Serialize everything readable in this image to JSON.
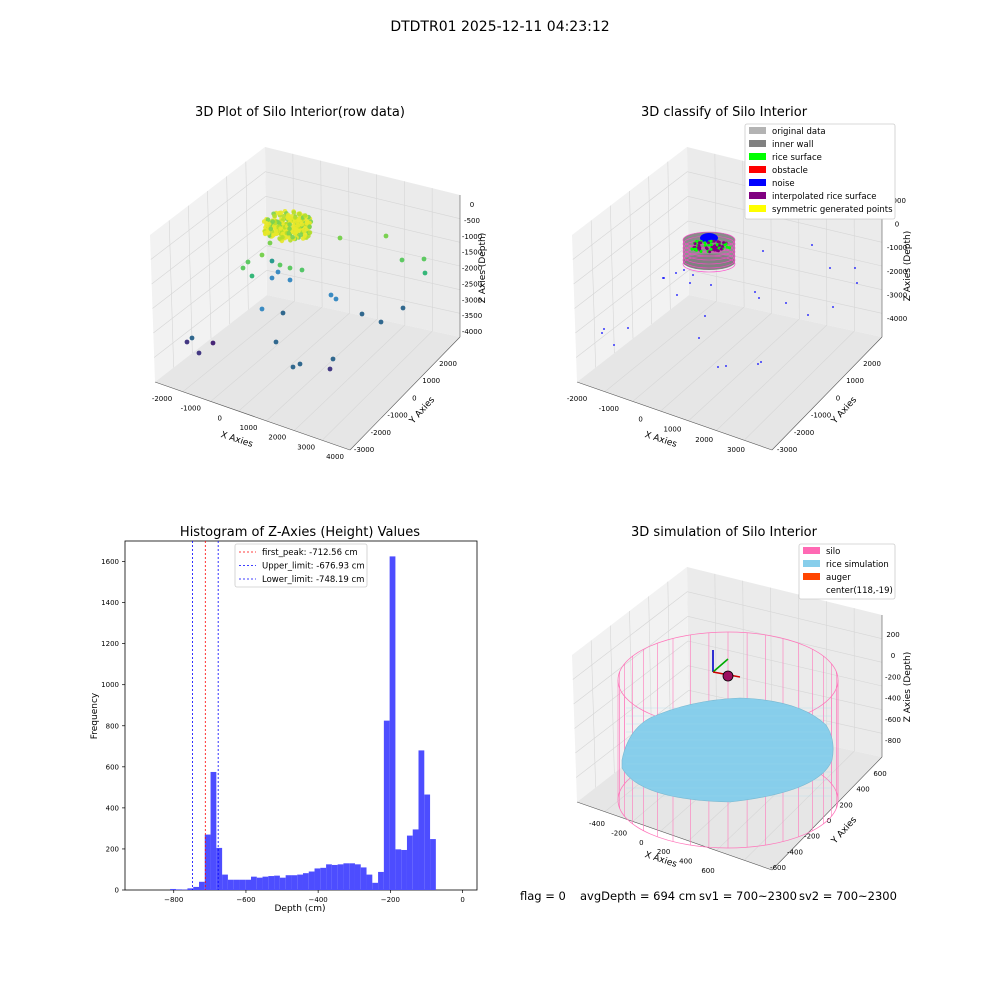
{
  "suptitle": "DTDTR01 2025-12-11 04:23:12",
  "status": {
    "flag": "flag = 0",
    "avg_depth": "avgDepth = 694 cm",
    "sv1": "sv1 = 700~2300",
    "sv2": "sv2 = 700~2300"
  },
  "chart_data": [
    {
      "type": "scatter",
      "title": "3D Plot of Silo Interior(row data)",
      "xlabel": "X Axies",
      "ylabel": "Y Axies",
      "zlabel": "Z Axies (Depth)",
      "x_ticks": [
        "-2000",
        "-1000",
        "0",
        "1000",
        "2000",
        "3000",
        "4000"
      ],
      "y_ticks": [
        "-3000",
        "-2000",
        "-1000",
        "0",
        "1000",
        "2000"
      ],
      "z_ticks": [
        "0",
        "-500",
        "-1000",
        "-1500",
        "-2000",
        "-2500",
        "-3000",
        "-3500",
        "-4000"
      ],
      "colormap": "viridis",
      "colors": {
        "low": "#440154",
        "mid": "#3b8bc2",
        "high": "#e8e82a"
      }
    },
    {
      "type": "scatter",
      "title": "3D classify of Silo Interior",
      "x_ticks": [
        "-2000",
        "-1000",
        "0",
        "1000",
        "2000",
        "3000"
      ],
      "y_ticks": [
        "-3000",
        "-2000",
        "-1000",
        "0",
        "1000",
        "2000"
      ],
      "z_ticks": [
        "1000",
        "0",
        "-1000",
        "-2000",
        "-3000",
        "-4000"
      ],
      "xlabel": "X Axies",
      "ylabel": "Y Axies",
      "zlabel": "Z Axies (Depth)",
      "legend_position": "top-right",
      "legend": [
        {
          "label": "original data",
          "color": "#b3b3b3"
        },
        {
          "label": "inner wall",
          "color": "#808080"
        },
        {
          "label": "rice surface",
          "color": "#00ff00"
        },
        {
          "label": "obstacle",
          "color": "#ff0000"
        },
        {
          "label": "noise",
          "color": "#0000ff"
        },
        {
          "label": "interpolated rice surface",
          "color": "#800080"
        },
        {
          "label": "symmetric generated points",
          "color": "#ffff00"
        }
      ]
    },
    {
      "type": "bar",
      "title": "Histogram of Z-Axies (Height) Values",
      "xlabel": "Depth (cm)",
      "ylabel": "Frequency",
      "xlim": [
        -935,
        40
      ],
      "ylim": [
        0,
        1700
      ],
      "x_ticks": [
        -800,
        -600,
        -400,
        -200,
        0
      ],
      "y_ticks": [
        0,
        200,
        400,
        600,
        800,
        1000,
        1200,
        1400,
        1600
      ],
      "bar_color": "#4d4dff",
      "bin_width": 16,
      "bin_start": -810,
      "values": [
        5,
        3,
        2,
        8,
        15,
        40,
        270,
        575,
        205,
        75,
        50,
        50,
        50,
        50,
        65,
        60,
        65,
        68,
        70,
        60,
        72,
        72,
        75,
        82,
        90,
        105,
        108,
        125,
        122,
        125,
        130,
        130,
        125,
        110,
        75,
        35,
        88,
        825,
        1625,
        198,
        195,
        265,
        295,
        680,
        465,
        248
      ],
      "legend_position": "top-center",
      "lines": [
        {
          "label": "first_peak: -712.56 cm",
          "value": -712.56,
          "color": "#ff0000"
        },
        {
          "label": "Upper_limit: -676.93 cm",
          "value": -676.93,
          "color": "#0000ff"
        },
        {
          "label": "Lower_limit: -748.19 cm",
          "value": -748.19,
          "color": "#0000ff"
        }
      ]
    },
    {
      "type": "scatter",
      "title": "3D simulation of Silo Interior",
      "xlabel": "X Axies",
      "ylabel": "Y Axies",
      "zlabel": "Z Axies (Depth)",
      "x_ticks": [
        "-400",
        "-200",
        "0",
        "200",
        "400",
        "600"
      ],
      "y_ticks": [
        "-600",
        "-400",
        "-200",
        "0",
        "200",
        "400",
        "600"
      ],
      "z_ticks": [
        "200",
        "0",
        "-200",
        "-400",
        "-600",
        "-800"
      ],
      "legend_position": "top-right",
      "legend": [
        {
          "label": "silo",
          "color": "#ff69b4"
        },
        {
          "label": "rice simulation",
          "color": "#87ceeb"
        },
        {
          "label": "auger",
          "color": "#ff4500"
        },
        {
          "label": "center(118,-19)",
          "color": ""
        }
      ]
    }
  ]
}
